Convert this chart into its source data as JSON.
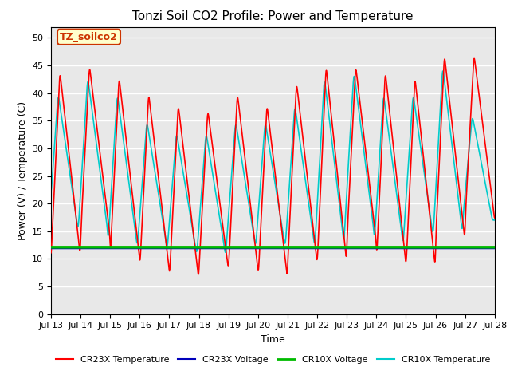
{
  "title": "Tonzi Soil CO2 Profile: Power and Temperature",
  "xlabel": "Time",
  "ylabel": "Power (V) / Temperature (C)",
  "xlim_start": 0,
  "xlim_end": 15.0,
  "ylim": [
    0,
    52
  ],
  "yticks": [
    0,
    5,
    10,
    15,
    20,
    25,
    30,
    35,
    40,
    45,
    50
  ],
  "xtick_labels": [
    "Jul 13",
    "Jul 14",
    "Jul 15",
    "Jul 16",
    "Jul 17",
    "Jul 18",
    "Jul 19",
    "Jul 20",
    "Jul 21",
    "Jul 22",
    "Jul 23",
    "Jul 24",
    "Jul 25",
    "Jul 26",
    "Jul 27",
    "Jul 28"
  ],
  "cr23x_temp_color": "#ff0000",
  "cr23x_volt_color": "#0000bb",
  "cr10x_volt_color": "#00bb00",
  "cr10x_temp_color": "#00cccc",
  "cr23x_volt_level": 11.9,
  "cr10x_volt_level": 12.1,
  "annotation_text": "TZ_soilco2",
  "annotation_bg": "#ffffcc",
  "annotation_border": "#cc3300",
  "annotation_text_color": "#cc3300",
  "title_fontsize": 11,
  "label_fontsize": 9,
  "tick_fontsize": 8,
  "legend_fontsize": 8,
  "plot_bg_color": "#e8e8e8",
  "peaks_cr23x": [
    44,
    45,
    43,
    40,
    38,
    37,
    40,
    38,
    42,
    45,
    45,
    44,
    43,
    47,
    47
  ],
  "troughs_cr23x": [
    10,
    14,
    10,
    8,
    6,
    8,
    8,
    6,
    9,
    9,
    13,
    9,
    8,
    13,
    17
  ],
  "peaks_cr10x": [
    40,
    43,
    40,
    35,
    33,
    33,
    35,
    35,
    38,
    43,
    44,
    40,
    40,
    45,
    36
  ],
  "troughs_cr10x": [
    15,
    15,
    12,
    12,
    11,
    10,
    12,
    12,
    12,
    12,
    15,
    12,
    14,
    14,
    17
  ]
}
